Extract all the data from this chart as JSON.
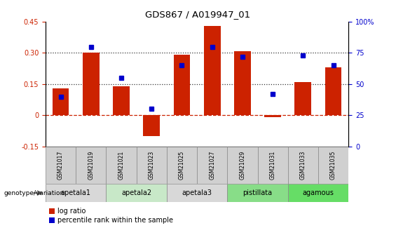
{
  "title": "GDS867 / A019947_01",
  "samples": [
    "GSM21017",
    "GSM21019",
    "GSM21021",
    "GSM21023",
    "GSM21025",
    "GSM21027",
    "GSM21029",
    "GSM21031",
    "GSM21033",
    "GSM21035"
  ],
  "log_ratio": [
    0.13,
    0.3,
    0.14,
    -0.1,
    0.29,
    0.43,
    0.31,
    -0.01,
    0.16,
    0.23
  ],
  "percentile_rank": [
    40,
    80,
    55,
    30,
    65,
    80,
    72,
    42,
    73,
    65
  ],
  "bar_color": "#cc2200",
  "dot_color": "#0000cc",
  "ylim_left": [
    -0.15,
    0.45
  ],
  "ylim_right": [
    0,
    100
  ],
  "yticks_left": [
    -0.15,
    0.0,
    0.15,
    0.3,
    0.45
  ],
  "ytick_labels_left": [
    "-0.15",
    "0",
    "0.15",
    "0.30",
    "0.45"
  ],
  "yticks_right": [
    0,
    25,
    50,
    75,
    100
  ],
  "ytick_labels_right": [
    "0",
    "25",
    "50",
    "75",
    "100%"
  ],
  "hlines": [
    0.0,
    0.15,
    0.3
  ],
  "hline_styles": [
    "dashed",
    "dotted",
    "dotted"
  ],
  "hline_colors": [
    "#cc2200",
    "#333333",
    "#333333"
  ],
  "sample_box_color": "#d0d0d0",
  "sample_box_edge": "#888888",
  "groups": [
    {
      "label": "apetala1",
      "indices": [
        0,
        1
      ],
      "color": "#d8d8d8"
    },
    {
      "label": "apetala2",
      "indices": [
        2,
        3
      ],
      "color": "#c8e8c8"
    },
    {
      "label": "apetala3",
      "indices": [
        4,
        5
      ],
      "color": "#d8d8d8"
    },
    {
      "label": "pistillata",
      "indices": [
        6,
        7
      ],
      "color": "#88dd88"
    },
    {
      "label": "agamous",
      "indices": [
        8,
        9
      ],
      "color": "#66dd66"
    }
  ],
  "genotype_label": "genotype/variation",
  "legend_items": [
    {
      "label": "log ratio",
      "color": "#cc2200"
    },
    {
      "label": "percentile rank within the sample",
      "color": "#0000cc"
    }
  ],
  "bar_width": 0.55,
  "dot_size": 5
}
